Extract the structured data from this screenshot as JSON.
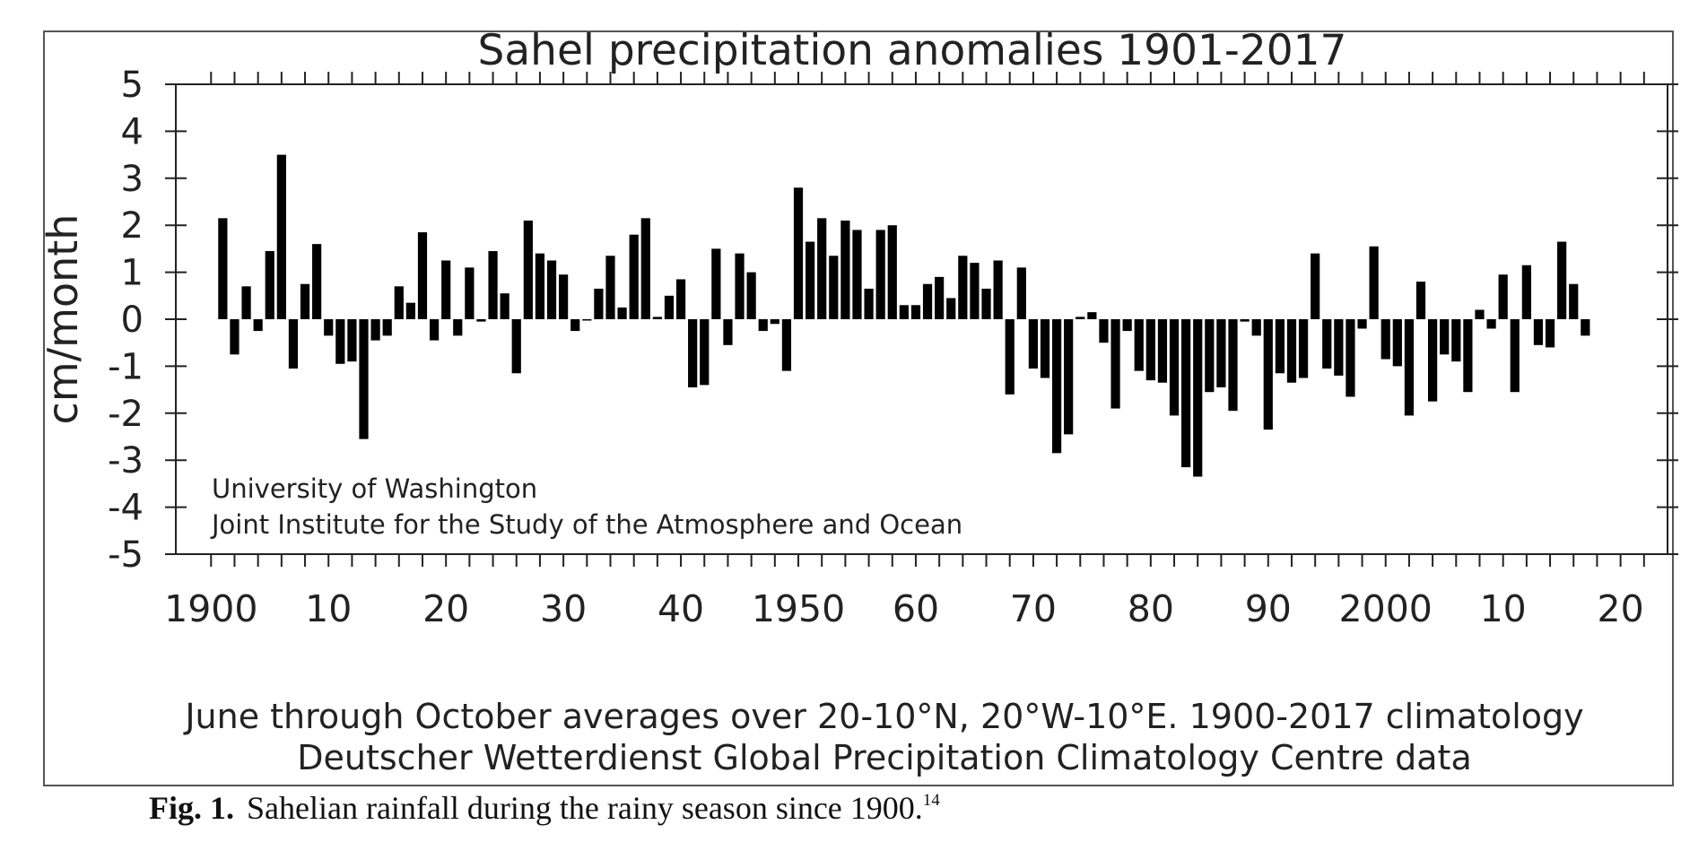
{
  "chart_data": {
    "type": "bar",
    "title": "Sahel precipitation anomalies 1901-2017",
    "ylabel": "cm/month",
    "xlabel": "",
    "ylim": [
      -5,
      5
    ],
    "xlim": [
      1897,
      2024
    ],
    "yticks": [
      "5",
      "4",
      "3",
      "2",
      "1",
      "0",
      "-1",
      "-2",
      "-3",
      "-4",
      "-5"
    ],
    "xticks": [
      {
        "x": 1900,
        "label": "1900"
      },
      {
        "x": 1910,
        "label": "10"
      },
      {
        "x": 1920,
        "label": "20"
      },
      {
        "x": 1930,
        "label": "30"
      },
      {
        "x": 1940,
        "label": "40"
      },
      {
        "x": 1950,
        "label": "1950"
      },
      {
        "x": 1960,
        "label": "60"
      },
      {
        "x": 1970,
        "label": "70"
      },
      {
        "x": 1980,
        "label": "80"
      },
      {
        "x": 1990,
        "label": "90"
      },
      {
        "x": 2000,
        "label": "2000"
      },
      {
        "x": 2010,
        "label": "10"
      },
      {
        "x": 2020,
        "label": "20"
      }
    ],
    "grid": false,
    "bar_color": "#000000",
    "annotations": [
      "University of Washington",
      "Joint Institute for the Study of the Atmosphere and Ocean"
    ],
    "notes": [
      "June through October averages over 20-10°N, 20°W-10°E.  1900-2017 climatology",
      "Deutscher Wetterdienst Global Precipitation Climatology Centre data"
    ],
    "years": [
      1901,
      1902,
      1903,
      1904,
      1905,
      1906,
      1907,
      1908,
      1909,
      1910,
      1911,
      1912,
      1913,
      1914,
      1915,
      1916,
      1917,
      1918,
      1919,
      1920,
      1921,
      1922,
      1923,
      1924,
      1925,
      1926,
      1927,
      1928,
      1929,
      1930,
      1931,
      1932,
      1933,
      1934,
      1935,
      1936,
      1937,
      1938,
      1939,
      1940,
      1941,
      1942,
      1943,
      1944,
      1945,
      1946,
      1947,
      1948,
      1949,
      1950,
      1951,
      1952,
      1953,
      1954,
      1955,
      1956,
      1957,
      1958,
      1959,
      1960,
      1961,
      1962,
      1963,
      1964,
      1965,
      1966,
      1967,
      1968,
      1969,
      1970,
      1971,
      1972,
      1973,
      1974,
      1975,
      1976,
      1977,
      1978,
      1979,
      1980,
      1981,
      1982,
      1983,
      1984,
      1985,
      1986,
      1987,
      1988,
      1989,
      1990,
      1991,
      1992,
      1993,
      1994,
      1995,
      1996,
      1997,
      1998,
      1999,
      2000,
      2001,
      2002,
      2003,
      2004,
      2005,
      2006,
      2007,
      2008,
      2009,
      2010,
      2011,
      2012,
      2013,
      2014,
      2015,
      2016,
      2017
    ],
    "values": [
      2.15,
      -0.75,
      0.7,
      -0.25,
      1.45,
      3.5,
      -1.05,
      0.75,
      1.6,
      -0.35,
      -0.95,
      -0.9,
      -2.55,
      -0.45,
      -0.35,
      0.7,
      0.35,
      1.85,
      -0.45,
      1.25,
      -0.35,
      1.1,
      -0.05,
      1.45,
      0.55,
      -1.15,
      2.1,
      1.4,
      1.25,
      0.95,
      -0.25,
      0.0,
      0.65,
      1.35,
      0.25,
      1.8,
      2.15,
      0.05,
      0.5,
      0.85,
      -1.45,
      -1.4,
      1.5,
      -0.55,
      1.4,
      1.0,
      -0.25,
      -0.1,
      -1.1,
      2.8,
      1.65,
      2.15,
      1.35,
      2.1,
      1.9,
      0.65,
      1.9,
      2.0,
      0.3,
      0.3,
      0.75,
      0.9,
      0.45,
      1.35,
      1.2,
      0.65,
      1.25,
      -1.6,
      1.1,
      -1.05,
      -1.25,
      -2.85,
      -2.45,
      0.05,
      0.15,
      -0.5,
      -1.9,
      -0.25,
      -1.1,
      -1.3,
      -1.35,
      -2.05,
      -3.15,
      -3.35,
      -1.55,
      -1.45,
      -1.95,
      -0.05,
      -0.35,
      -2.35,
      -1.15,
      -1.35,
      -1.25,
      1.4,
      -1.05,
      -1.2,
      -1.65,
      -0.2,
      1.55,
      -0.85,
      -1.0,
      -2.05,
      0.8,
      -1.75,
      -0.75,
      -0.9,
      -1.55,
      0.2,
      -0.2,
      0.95,
      -1.55,
      1.15,
      -0.55,
      -0.6,
      1.65,
      0.75,
      -0.35
    ]
  },
  "caption": {
    "label": "Fig. 1.",
    "text": "Sahelian rainfall during the rainy season since 1900.",
    "ref": "14"
  }
}
